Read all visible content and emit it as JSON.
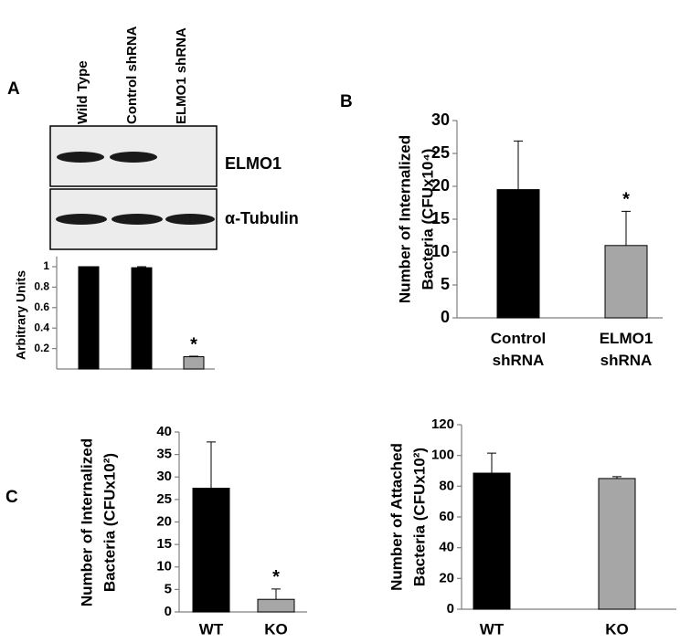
{
  "panel_labels": [
    "A",
    "B",
    "C"
  ],
  "blot": {
    "lanes": [
      "Wild Type",
      "Control shRNA",
      "ELMO1 shRNA"
    ],
    "bands": [
      "ELMO1",
      "α-Tubulin"
    ]
  },
  "chart_data": [
    {
      "type": "bar",
      "ylabel": [
        "Arbitrary Units"
      ],
      "categories": [
        null,
        null,
        null
      ],
      "values": [
        1,
        0.99,
        0.12
      ],
      "errors": [
        0,
        0.01,
        0.005
      ],
      "colors": [
        "#000000",
        "#000000",
        "#a6a6a6"
      ],
      "markers": [
        null,
        null,
        "*"
      ],
      "ylim": [
        0,
        1.1
      ],
      "yticks": [
        0.2,
        0.4,
        0.6,
        0.8,
        1
      ]
    },
    {
      "type": "bar",
      "ylabel": [
        "Number of Internalized",
        "Bacteria (CFUx10⁴)"
      ],
      "categories": [
        "Control shRNA",
        "ELMO1 shRNA"
      ],
      "values": [
        19.5,
        11
      ],
      "errors": [
        7.4,
        5.2
      ],
      "colors": [
        "#000000",
        "#a6a6a6"
      ],
      "markers": [
        null,
        "*"
      ],
      "ylim": [
        0,
        30
      ],
      "yticks": [
        0,
        5,
        10,
        15,
        20,
        25,
        30
      ]
    },
    {
      "type": "bar",
      "ylabel": [
        "Number of Internalized",
        "Bacteria (CFUx10²)"
      ],
      "categories": [
        "WT",
        "KO"
      ],
      "values": [
        27.5,
        2.8
      ],
      "errors": [
        10.3,
        2.3
      ],
      "colors": [
        "#000000",
        "#a6a6a6"
      ],
      "markers": [
        null,
        "*"
      ],
      "ylim": [
        0,
        40
      ],
      "yticks": [
        0,
        5,
        10,
        15,
        20,
        25,
        30,
        35,
        40
      ]
    },
    {
      "type": "bar",
      "ylabel": [
        "Number of Attached",
        "Bacteria (CFUx10²)"
      ],
      "categories": [
        "WT",
        "KO"
      ],
      "values": [
        88.5,
        85
      ],
      "errors": [
        13,
        1.2
      ],
      "colors": [
        "#000000",
        "#a6a6a6"
      ],
      "ylim": [
        0,
        120
      ],
      "yticks": [
        0,
        20,
        40,
        60,
        80,
        100,
        120
      ]
    }
  ]
}
